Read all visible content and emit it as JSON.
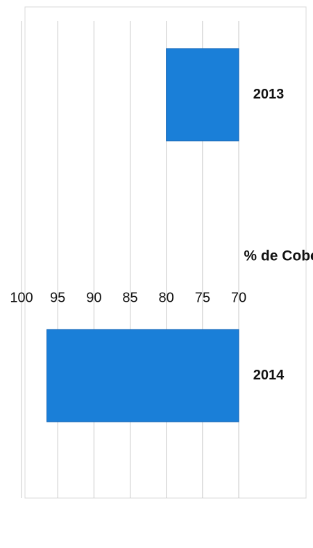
{
  "chart_data": {
    "type": "bar",
    "orientation": "horizontal",
    "categories": [
      "2013",
      "2014"
    ],
    "values": [
      80,
      96.5
    ],
    "xlabel": "% de Cobertura",
    "ylabel": "",
    "xlim": [
      70,
      100
    ],
    "ticks": [
      "100",
      "95",
      "90",
      "85",
      "80",
      "75",
      "70"
    ],
    "grid": true,
    "bar_color": "#1a7fd8"
  }
}
